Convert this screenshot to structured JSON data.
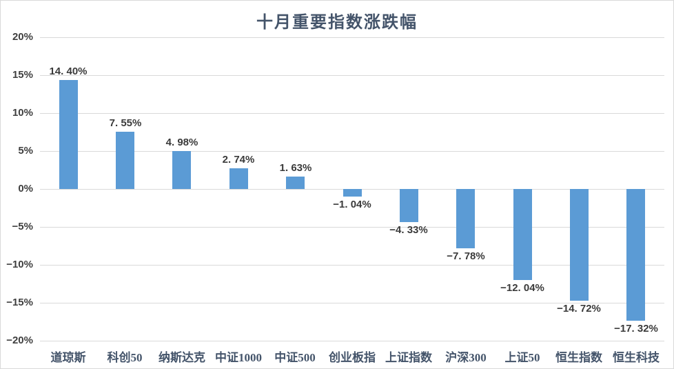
{
  "chart_data": {
    "type": "bar",
    "title": "十月重要指数涨跌幅",
    "categories": [
      "道琼斯",
      "科创50",
      "纳斯达克",
      "中证1000",
      "中证500",
      "创业板指",
      "上证指数",
      "沪深300",
      "上证50",
      "恒生指数",
      "恒生科技"
    ],
    "values": [
      14.4,
      7.55,
      4.98,
      2.74,
      1.63,
      -1.04,
      -4.33,
      -7.78,
      -12.04,
      -14.72,
      -17.32
    ],
    "data_labels": [
      "14. 40%",
      "7. 55%",
      "4. 98%",
      "2. 74%",
      "1. 63%",
      "−1. 04%",
      "−4. 33%",
      "−7. 78%",
      "−12. 04%",
      "−14. 72%",
      "−17. 32%"
    ],
    "xlabel": "",
    "ylabel": "",
    "ylim": [
      -20,
      20
    ],
    "ytick_step": 5,
    "ytick_labels": [
      "20%",
      "15%",
      "10%",
      "5%",
      "0%",
      "−5%",
      "−10%",
      "−15%",
      "−20%"
    ],
    "grid": true,
    "legend": "none",
    "series_color": "#5B9BD5",
    "grid_color": "#D9D9D9",
    "title_color": "#44546A",
    "tick_label_color": "#3F3F3F",
    "data_label_color": "#3A3A3A",
    "category_label_color": "#44546A",
    "background_color": "#FFFFFF"
  }
}
